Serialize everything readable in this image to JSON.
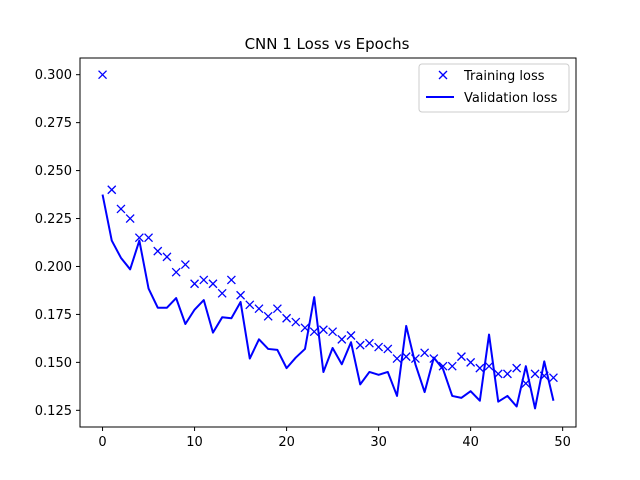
{
  "chart_data": {
    "type": "line",
    "title": "CNN 1 Loss vs Epochs",
    "xlabel": "",
    "ylabel": "",
    "xlim": [
      -2.45,
      51.45
    ],
    "ylim": [
      0.1163,
      0.3087
    ],
    "xticks": [
      0,
      10,
      20,
      30,
      40,
      50
    ],
    "yticks": [
      0.125,
      0.15,
      0.175,
      0.2,
      0.225,
      0.25,
      0.275,
      0.3
    ],
    "ytick_labels": [
      "0.125",
      "0.150",
      "0.175",
      "0.200",
      "0.225",
      "0.250",
      "0.275",
      "0.300"
    ],
    "grid": false,
    "legend_position": "top-right",
    "x": [
      0,
      1,
      2,
      3,
      4,
      5,
      6,
      7,
      8,
      9,
      10,
      11,
      12,
      13,
      14,
      15,
      16,
      17,
      18,
      19,
      20,
      21,
      22,
      23,
      24,
      25,
      26,
      27,
      28,
      29,
      30,
      31,
      32,
      33,
      34,
      35,
      36,
      37,
      38,
      39,
      40,
      41,
      42,
      43,
      44,
      45,
      46,
      47,
      48,
      49
    ],
    "series": [
      {
        "name": "Training loss",
        "style": "marker-x",
        "color": "#0000ff",
        "values": [
          0.3,
          0.24,
          0.23,
          0.225,
          0.215,
          0.215,
          0.208,
          0.205,
          0.197,
          0.201,
          0.191,
          0.193,
          0.191,
          0.186,
          0.193,
          0.185,
          0.18,
          0.178,
          0.174,
          0.178,
          0.173,
          0.171,
          0.168,
          0.166,
          0.167,
          0.166,
          0.162,
          0.164,
          0.159,
          0.16,
          0.158,
          0.157,
          0.152,
          0.153,
          0.152,
          0.155,
          0.152,
          0.148,
          0.148,
          0.153,
          0.15,
          0.147,
          0.148,
          0.144,
          0.144,
          0.147,
          0.139,
          0.144,
          0.143,
          0.142
        ]
      },
      {
        "name": "Validation loss",
        "style": "line",
        "color": "#0000ff",
        "values": [
          0.2375,
          0.2135,
          0.2045,
          0.1985,
          0.2135,
          0.1885,
          0.1785,
          0.1785,
          0.1835,
          0.17,
          0.1775,
          0.1825,
          0.1655,
          0.1735,
          0.173,
          0.1815,
          0.152,
          0.162,
          0.157,
          0.1565,
          0.147,
          0.1525,
          0.157,
          0.184,
          0.145,
          0.1575,
          0.149,
          0.1605,
          0.1385,
          0.145,
          0.1435,
          0.145,
          0.1325,
          0.169,
          0.149,
          0.1345,
          0.1525,
          0.1465,
          0.1325,
          0.1315,
          0.135,
          0.13,
          0.1645,
          0.1295,
          0.1325,
          0.127,
          0.148,
          0.126,
          0.1505,
          0.13
        ]
      }
    ]
  }
}
